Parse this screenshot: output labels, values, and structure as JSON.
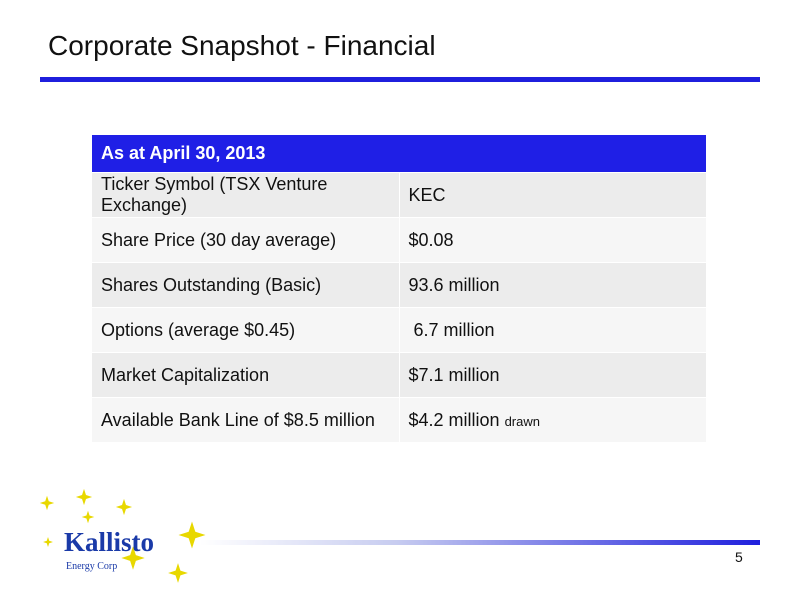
{
  "slide": {
    "title": "Corporate Snapshot - Financial",
    "page_number": "5"
  },
  "table": {
    "header": "As at April 30, 2013",
    "rows": [
      {
        "label": "Ticker Symbol (TSX Venture Exchange)",
        "value": "KEC",
        "note": ""
      },
      {
        "label": "Share Price (30 day average)",
        "value": "$0.08",
        "note": ""
      },
      {
        "label": "Shares Outstanding (Basic)",
        "value": "93.6 million",
        "note": ""
      },
      {
        "label": "Options (average $0.45)",
        "value": " 6.7 million",
        "note": ""
      },
      {
        "label": "Market Capitalization",
        "value": "$7.1 million",
        "note": ""
      },
      {
        "label": "Available Bank Line of $8.5 million",
        "value": "$4.2 million",
        "note": "drawn"
      }
    ]
  },
  "logo": {
    "name": "Kallisto",
    "subtitle": "Energy Corp"
  },
  "colors": {
    "accent_blue": "#1f1fdd",
    "header_fill": "#1f1fe6",
    "logo_blue": "#1a3aa8",
    "star_gold": "#e8d800"
  }
}
